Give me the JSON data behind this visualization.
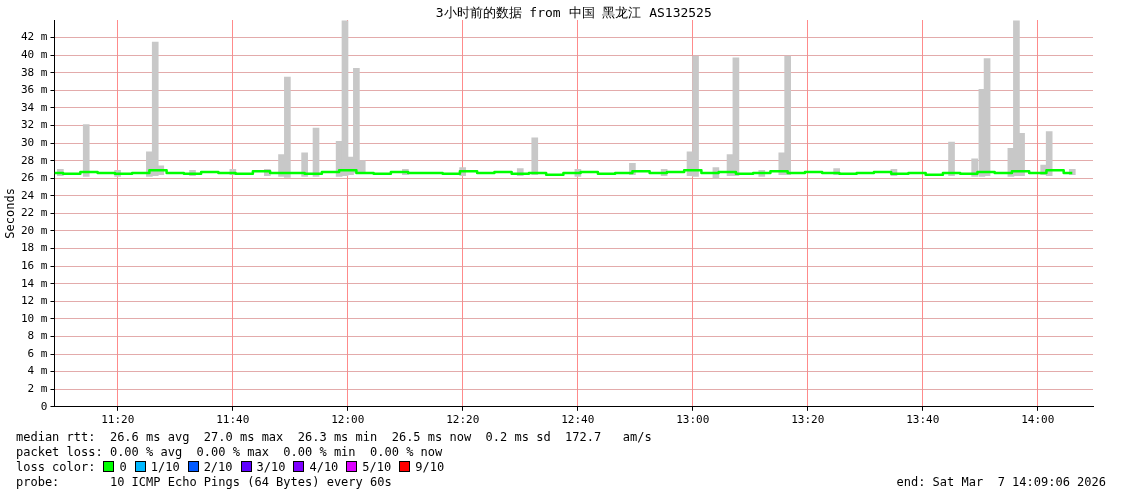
{
  "chart_data": {
    "type": "step",
    "title": "3小时前的数据 from 中国 黑龙江 AS132525",
    "ylabel": "Seconds",
    "legend_title": "loss color:",
    "legend": "bottom left",
    "grid": true,
    "xlim": [
      11.15,
      14.16
    ],
    "xticks": [
      {
        "value": 11.3333,
        "label": "11:20"
      },
      {
        "value": 11.6667,
        "label": "11:40"
      },
      {
        "value": 12,
        "label": "12:00"
      },
      {
        "value": 12.3333,
        "label": "12:20"
      },
      {
        "value": 12.6667,
        "label": "12:40"
      },
      {
        "value": 13,
        "label": "13:00"
      },
      {
        "value": 13.3333,
        "label": "13:20"
      },
      {
        "value": 13.6667,
        "label": "13:40"
      },
      {
        "value": 14,
        "label": "14:00"
      }
    ],
    "ylim": [
      0,
      44
    ],
    "yticks": [
      0,
      {
        "value": 2,
        "label": "2 m"
      },
      {
        "value": 4,
        "label": "4 m"
      },
      {
        "value": 6,
        "label": "6 m"
      },
      {
        "value": 8,
        "label": "8 m"
      },
      {
        "value": 10,
        "label": "10 m"
      },
      {
        "value": 12,
        "label": "12 m"
      },
      {
        "value": 14,
        "label": "14 m"
      },
      {
        "value": 16,
        "label": "16 m"
      },
      {
        "value": 18,
        "label": "18 m"
      },
      {
        "value": 20,
        "label": "20 m"
      },
      {
        "value": 22,
        "label": "22 m"
      },
      {
        "value": 24,
        "label": "24 m"
      },
      {
        "value": 26,
        "label": "26 m"
      },
      {
        "value": 28,
        "label": "28 m"
      },
      {
        "value": 30,
        "label": "30 m"
      },
      {
        "value": 32,
        "label": "32 m"
      },
      {
        "value": 34,
        "label": "34 m"
      },
      {
        "value": 36,
        "label": "36 m"
      },
      {
        "value": 38,
        "label": "38 m"
      },
      {
        "value": 40,
        "label": "40 m"
      },
      {
        "value": 42,
        "label": "42 m"
      }
    ],
    "series": [
      {
        "type": "bar",
        "color": "#c8c8c8",
        "x": [
          11.167,
          11.242,
          11.333,
          11.425,
          11.442,
          11.458,
          11.55,
          11.667,
          11.767,
          11.808,
          11.825,
          11.875,
          11.908,
          11.975,
          11.992,
          12.008,
          12.025,
          12.042,
          12.167,
          12.333,
          12.5,
          12.542,
          12.667,
          12.825,
          12.917,
          12.992,
          13.008,
          13.067,
          13.108,
          13.125,
          13.2,
          13.258,
          13.275,
          13.417,
          13.583,
          13.75,
          13.817,
          13.838,
          13.853,
          13.922,
          13.938,
          13.953,
          14.017,
          14.033,
          14.1
        ],
        "base": [
          26.3,
          26.2,
          26.2,
          26.2,
          26.3,
          26.4,
          26.3,
          26.4,
          26.3,
          26.2,
          26.1,
          26.2,
          26.2,
          26.2,
          26.3,
          26.4,
          26.6,
          26.6,
          26.4,
          26.3,
          26.3,
          26.4,
          26.2,
          26.4,
          26.3,
          26.3,
          26.2,
          26.0,
          26.3,
          26.3,
          26.2,
          26.4,
          26.4,
          26.4,
          26.3,
          26.3,
          26.2,
          26.2,
          26.3,
          26.2,
          26.3,
          26.3,
          26.4,
          26.3,
          26.4
        ],
        "values": [
          0.7,
          5.9,
          0.7,
          2.8,
          15.2,
          1.0,
          0.6,
          0.6,
          0.7,
          2.5,
          11.4,
          2.7,
          5.5,
          4.0,
          17.6,
          2.0,
          11.9,
          1.4,
          0.6,
          0.9,
          0.8,
          4.2,
          0.8,
          1.3,
          0.7,
          2.7,
          13.7,
          1.2,
          2.4,
          13.4,
          0.7,
          2.5,
          13.5,
          0.7,
          0.7,
          3.8,
          2.0,
          9.9,
          13.3,
          3.2,
          17.6,
          4.8,
          1.1,
          5.0,
          0.6
        ]
      },
      {
        "name": "0",
        "color": "#00ff00",
        "x": [
          11.15,
          11.2,
          11.25,
          11.3,
          11.35,
          11.4,
          11.45,
          11.5,
          11.55,
          11.6,
          11.65,
          11.7,
          11.75,
          11.8,
          11.85,
          11.9,
          11.95,
          12.0,
          12.05,
          12.1,
          12.15,
          12.2,
          12.25,
          12.3,
          12.35,
          12.4,
          12.45,
          12.5,
          12.55,
          12.6,
          12.65,
          12.7,
          12.75,
          12.8,
          12.85,
          12.9,
          12.95,
          13.0,
          13.05,
          13.1,
          13.15,
          13.2,
          13.25,
          13.3,
          13.35,
          13.4,
          13.45,
          13.5,
          13.55,
          13.6,
          13.65,
          13.7,
          13.75,
          13.8,
          13.85,
          13.9,
          13.95,
          14.0,
          14.05,
          14.1
        ],
        "values": [
          26.6,
          26.5,
          26.7,
          26.6,
          26.5,
          26.6,
          26.9,
          26.6,
          26.5,
          26.7,
          26.6,
          26.5,
          26.8,
          26.6,
          26.6,
          26.5,
          26.7,
          26.9,
          26.6,
          26.5,
          26.7,
          26.6,
          26.6,
          26.5,
          26.8,
          26.6,
          26.7,
          26.5,
          26.6,
          26.4,
          26.6,
          26.7,
          26.5,
          26.6,
          26.8,
          26.6,
          26.7,
          26.9,
          26.6,
          26.7,
          26.5,
          26.6,
          26.8,
          26.6,
          26.7,
          26.6,
          26.5,
          26.6,
          26.7,
          26.5,
          26.6,
          26.4,
          26.6,
          26.5,
          26.7,
          26.6,
          26.8,
          26.6,
          26.9,
          26.6
        ]
      },
      {
        "name": "1/10",
        "color": "#00b8ff"
      },
      {
        "name": "2/10",
        "color": "#0059ff"
      },
      {
        "name": "3/10",
        "color": "#5e00ff"
      },
      {
        "name": "4/10",
        "color": "#7e00ff"
      },
      {
        "name": "5/10",
        "color": "#dd00ff"
      },
      {
        "name": "9/10",
        "color": "#ff0000"
      }
    ],
    "annotations": [
      "median rtt:  26.6 ms avg  27.0 ms max  26.3 ms min  26.5 ms now  0.2 ms sd  172.7   am/s",
      "packet loss: 0.00 % avg  0.00 % max  0.00 % min  0.00 % now",
      "probe:       10 ICMP Echo Pings (64 Bytes) every 60s",
      "end: Sat Mar  7 14:09:06 2026"
    ]
  }
}
